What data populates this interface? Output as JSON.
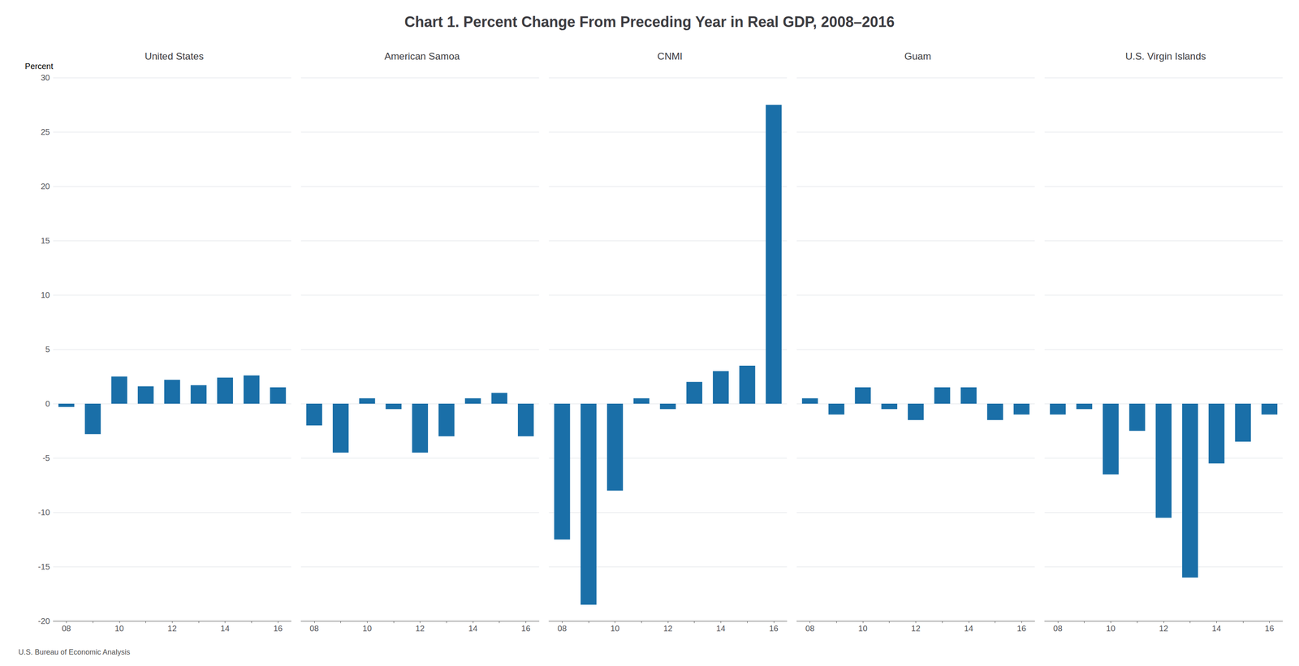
{
  "title": "Chart 1. Percent Change From Preceding Year in Real GDP, 2008–2016",
  "footer": "U.S. Bureau of Economic Analysis",
  "chart_data": [
    {
      "type": "bar",
      "title": "United States",
      "categories": [
        "08",
        null,
        "10",
        null,
        "12",
        null,
        "14",
        null,
        "16"
      ],
      "values": [
        -0.3,
        -2.8,
        2.5,
        1.6,
        2.2,
        1.7,
        2.4,
        2.6,
        1.5
      ],
      "color": "#1a6fa8",
      "ylabel": "Percent",
      "ylim": [
        -20,
        30
      ],
      "yticks": [
        -20,
        -15,
        -10,
        -5,
        0,
        5,
        10,
        15,
        20,
        25,
        30
      ],
      "grid": true
    },
    {
      "type": "bar",
      "title": "American Samoa",
      "categories": [
        "08",
        null,
        "10",
        null,
        "12",
        null,
        "14",
        null,
        "16"
      ],
      "values": [
        -2.0,
        -4.5,
        0.5,
        -0.5,
        -4.5,
        -3.0,
        0.5,
        1.0,
        -3.0
      ],
      "color": "#1a6fa8",
      "ylim": [
        -20,
        30
      ],
      "yticks": [
        -20,
        -15,
        -10,
        -5,
        0,
        5,
        10,
        15,
        20,
        25,
        30
      ],
      "grid": true,
      "tick_labels": "x"
    },
    {
      "type": "bar",
      "title": "CNMI",
      "categories": [
        "08",
        null,
        "10",
        null,
        "12",
        null,
        "14",
        null,
        "16"
      ],
      "values": [
        -12.5,
        -18.5,
        -8.0,
        0.5,
        -0.5,
        2.0,
        3.0,
        3.5,
        27.5
      ],
      "color": "#1a6fa8",
      "ylim": [
        -20,
        30
      ],
      "yticks": [
        -20,
        -15,
        -10,
        -5,
        0,
        5,
        10,
        15,
        20,
        25,
        30
      ],
      "grid": true,
      "tick_labels": "x"
    },
    {
      "type": "bar",
      "title": "Guam",
      "categories": [
        "08",
        null,
        "10",
        null,
        "12",
        null,
        "14",
        null,
        "16"
      ],
      "values": [
        0.5,
        -1.0,
        1.5,
        -0.5,
        -1.5,
        1.5,
        1.5,
        -1.5,
        -1.0
      ],
      "color": "#1a6fa8",
      "ylim": [
        -20,
        30
      ],
      "yticks": [
        -20,
        -15,
        -10,
        -5,
        0,
        5,
        10,
        15,
        20,
        25,
        30
      ],
      "grid": true,
      "tick_labels": "x"
    },
    {
      "type": "bar",
      "title": "U.S. Virgin Islands",
      "categories": [
        "08",
        null,
        "10",
        null,
        "12",
        null,
        "14",
        null,
        "16"
      ],
      "values": [
        -1.0,
        -0.5,
        -6.5,
        -2.5,
        -10.5,
        -16.0,
        -5.5,
        -3.5,
        -1.0
      ],
      "color": "#1a6fa8",
      "ylim": [
        -20,
        30
      ],
      "yticks": [
        -20,
        -15,
        -10,
        -5,
        0,
        5,
        10,
        15,
        20,
        25,
        30
      ],
      "grid": true,
      "tick_labels": "x"
    }
  ]
}
